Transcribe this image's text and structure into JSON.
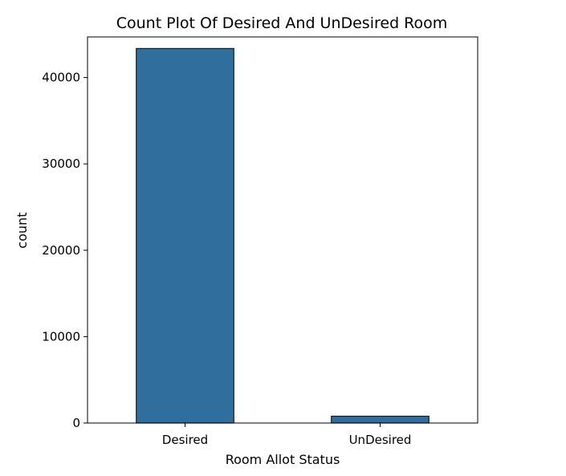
{
  "chart_data": {
    "type": "bar",
    "title": "Count Plot Of Desired And UnDesired Room",
    "xlabel": "Room Allot Status",
    "ylabel": "count",
    "categories": [
      "Desired",
      "UnDesired"
    ],
    "values": [
      43360,
      790
    ],
    "ylim": [
      0,
      44700
    ],
    "yticks": [
      0,
      10000,
      20000,
      30000,
      40000
    ],
    "ytick_labels": [
      "0",
      "10000",
      "20000",
      "30000",
      "40000"
    ],
    "bar_color": "#2f6e9d",
    "bar_edge_color": "#1a1a1a",
    "grid": false,
    "legend": "none"
  }
}
